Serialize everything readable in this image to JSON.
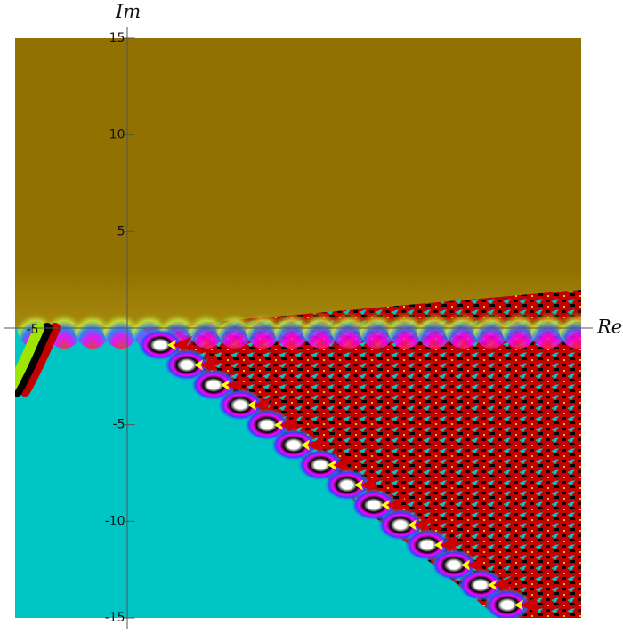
{
  "chart_data": {
    "type": "heatmap",
    "title": "",
    "xlabel": "Re",
    "ylabel": "Im",
    "xlim": [
      -5.9,
      23.3
    ],
    "ylim": [
      -15,
      15
    ],
    "x_ticks": [
      -5
    ],
    "x_tick_labels": [
      "-5"
    ],
    "y_ticks": [
      15,
      10,
      5,
      -5,
      -10,
      -15
    ],
    "y_tick_labels": [
      "15",
      "10",
      "5",
      "-5",
      "-10",
      "-15"
    ],
    "grid": false,
    "colors": {
      "upper_half_plane": "#917200",
      "lower_half_plane": "#00c5c5",
      "fractal_fill": "#c20000",
      "highlights": [
        "#ffffff",
        "#000000",
        "#ffff00",
        "#ff00ff",
        "#0000ff",
        "#9ee600"
      ]
    }
  }
}
